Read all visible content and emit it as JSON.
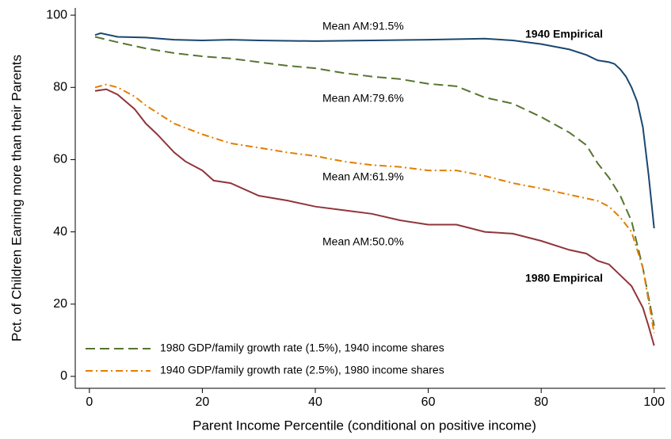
{
  "chart_data": {
    "type": "line",
    "xlabel": "Parent Income Percentile (conditional on positive income)",
    "ylabel": "Pct. of Children Earning more than their Parents",
    "xlim": [
      -2.5,
      102
    ],
    "ylim": [
      -3.3,
      102
    ],
    "xticks": [
      0,
      20,
      40,
      60,
      80,
      100
    ],
    "yticks": [
      0,
      20,
      40,
      60,
      80,
      100
    ],
    "grid": false,
    "legend": "lower left",
    "annotations": [
      "Mean AM:91.5%",
      "Mean AM:79.6%",
      "Mean AM:61.9%",
      "Mean AM:50.0%"
    ],
    "series": [
      {
        "name": "1940 Empirical",
        "color": "#1a476f",
        "dash": "solid",
        "x": [
          1,
          2,
          5,
          10,
          15,
          20,
          25,
          30,
          40,
          50,
          60,
          70,
          75,
          80,
          85,
          88,
          90,
          92,
          93,
          94,
          95,
          96,
          97,
          98,
          99,
          100
        ],
        "values": [
          94.5,
          95,
          94,
          93.8,
          93.2,
          93,
          93.2,
          93,
          92.8,
          93,
          93.2,
          93.5,
          93,
          92,
          90.5,
          89,
          87.5,
          87,
          86.5,
          85,
          83,
          80,
          76,
          69,
          56,
          41
        ]
      },
      {
        "name": "1980 GDP/family growth rate (1.5%), 1940 income shares",
        "color": "#55752f",
        "dash": "dash",
        "x": [
          1,
          5,
          10,
          15,
          20,
          25,
          30,
          35,
          40,
          45,
          50,
          55,
          60,
          65,
          70,
          75,
          80,
          85,
          88,
          90,
          92,
          94,
          96,
          98,
          100
        ],
        "values": [
          94,
          92.5,
          90.8,
          89.5,
          88.6,
          88,
          87,
          86,
          85.3,
          84,
          83,
          82.3,
          81,
          80.3,
          77.2,
          75.5,
          71.8,
          67.5,
          64,
          59,
          55,
          50,
          43,
          30,
          14
        ]
      },
      {
        "name": "1940 GDP/family growth rate (2.5%), 1980 income shares",
        "color": "#e37e00",
        "dash": "dashdot",
        "x": [
          1,
          3,
          5,
          8,
          10,
          15,
          20,
          25,
          30,
          35,
          40,
          45,
          50,
          55,
          60,
          65,
          70,
          75,
          80,
          85,
          90,
          92,
          94,
          96,
          98,
          100
        ],
        "values": [
          80,
          80.8,
          80,
          77.5,
          75,
          70,
          67,
          64.5,
          63.3,
          62,
          61,
          59.5,
          58.5,
          58,
          57,
          57,
          55.5,
          53.5,
          52,
          50.3,
          48.6,
          47,
          44,
          40,
          30,
          12
        ]
      },
      {
        "name": "1980 Empirical",
        "color": "#90353b",
        "dash": "solid",
        "x": [
          1,
          3,
          5,
          8,
          10,
          12,
          15,
          17,
          20,
          22,
          25,
          30,
          35,
          40,
          45,
          50,
          55,
          60,
          65,
          70,
          75,
          80,
          85,
          88,
          90,
          92,
          94,
          96,
          98,
          99,
          100
        ],
        "values": [
          79,
          79.5,
          78,
          74,
          70,
          67,
          62,
          59.5,
          57,
          54.2,
          53.5,
          50,
          48.7,
          47,
          46,
          45,
          43.2,
          42,
          42,
          40,
          39.5,
          37.5,
          35,
          34,
          32,
          31,
          28,
          25,
          19,
          14,
          8.5
        ]
      }
    ]
  }
}
